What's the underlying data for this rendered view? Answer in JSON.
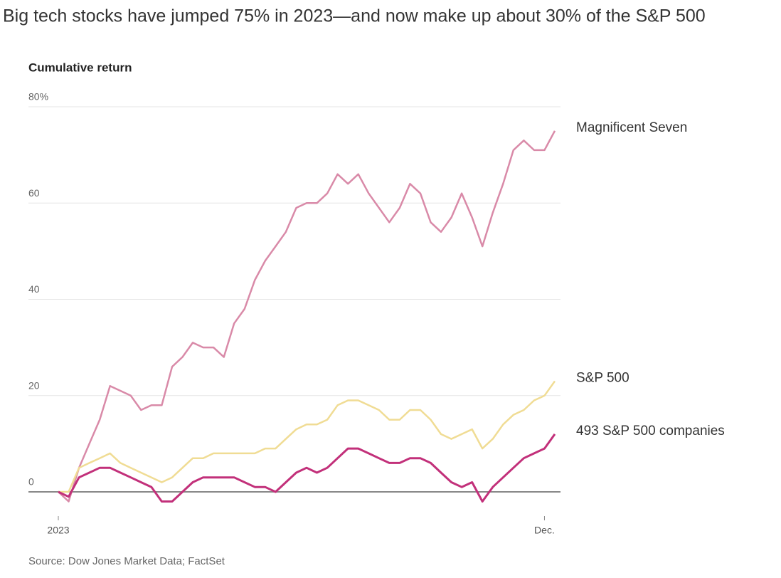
{
  "chart_data": {
    "type": "line",
    "title": "Big tech stocks have jumped 75% in 2023—and now make up about 30% of the S&P 500",
    "subtitle": "Cumulative return",
    "source": "Source: Dow Jones Market Data; FactSet",
    "categories": [
      "2023",
      null,
      null,
      null,
      null,
      null,
      null,
      null,
      null,
      null,
      null,
      null,
      null,
      null,
      null,
      null,
      null,
      null,
      null,
      null,
      null,
      null,
      null,
      null,
      null,
      null,
      null,
      null,
      null,
      null,
      null,
      null,
      null,
      null,
      null,
      null,
      null,
      null,
      null,
      null,
      null,
      null,
      null,
      null,
      null,
      null,
      null,
      "Dec.",
      null
    ],
    "series": [
      {
        "name": "Magnificent Seven",
        "color": "#d98aa8",
        "values": [
          0,
          -2,
          5,
          10,
          15,
          22,
          21,
          20,
          17,
          18,
          18,
          26,
          28,
          31,
          30,
          30,
          28,
          35,
          38,
          44,
          48,
          51,
          54,
          59,
          60,
          60,
          62,
          66,
          64,
          66,
          62,
          59,
          56,
          59,
          64,
          62,
          56,
          54,
          57,
          62,
          57,
          51,
          58,
          64,
          71,
          73,
          71,
          71,
          75
        ]
      },
      {
        "name": "S&P 500",
        "color": "#f0dc94",
        "values": [
          0,
          0,
          5,
          6,
          7,
          8,
          6,
          5,
          4,
          3,
          2,
          3,
          5,
          7,
          7,
          8,
          8,
          8,
          8,
          8,
          9,
          9,
          11,
          13,
          14,
          14,
          15,
          18,
          19,
          19,
          18,
          17,
          15,
          15,
          17,
          17,
          15,
          12,
          11,
          12,
          13,
          9,
          11,
          14,
          16,
          17,
          19,
          20,
          23
        ]
      },
      {
        "name": "493 S&P 500 companies",
        "color": "#c2307a",
        "values": [
          0,
          -1,
          3,
          4,
          5,
          5,
          4,
          3,
          2,
          1,
          -2,
          -2,
          0,
          2,
          3,
          3,
          3,
          3,
          2,
          1,
          1,
          0,
          2,
          4,
          5,
          4,
          5,
          7,
          9,
          9,
          8,
          7,
          6,
          6,
          7,
          7,
          6,
          4,
          2,
          1,
          2,
          -2,
          1,
          3,
          5,
          7,
          8,
          9,
          12
        ]
      }
    ],
    "ylim": [
      -5,
      80
    ],
    "yticks": [
      0,
      20,
      40,
      60,
      {
        "value": 80,
        "label": "80%"
      }
    ],
    "grid": true
  }
}
